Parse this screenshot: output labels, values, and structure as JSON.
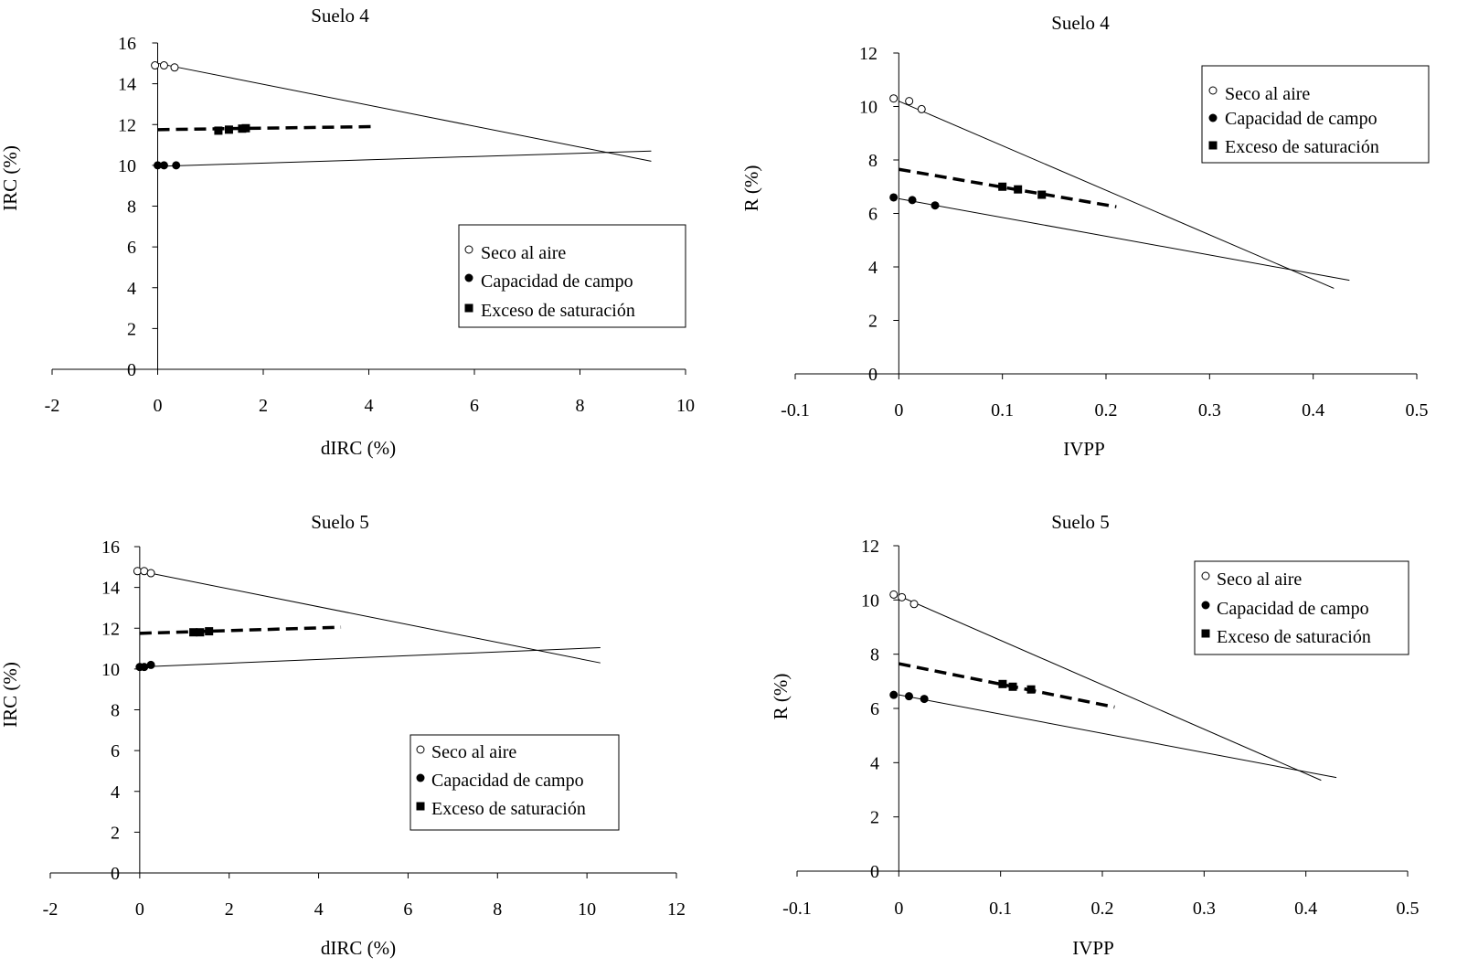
{
  "legend": [
    {
      "label": "Seco al aire",
      "marker": "open-circle"
    },
    {
      "label": "Capacidad de campo",
      "marker": "filled-circle"
    },
    {
      "label": "Exceso de saturación",
      "marker": "filled-square"
    }
  ],
  "colors": {
    "ink": "#000000",
    "background": "#ffffff",
    "marker_fill_open": "#ffffff"
  },
  "chart_data": [
    {
      "type": "scatter",
      "title": "Suelo 4",
      "xlabel": "dIRC (%)",
      "ylabel": "IRC (%)",
      "xlim": [
        -2,
        10
      ],
      "ylim": [
        0,
        16
      ],
      "xticks": [
        "-2",
        "0",
        "2",
        "4",
        "6",
        "8",
        "10"
      ],
      "yticks": [
        "0",
        "2",
        "4",
        "6",
        "8",
        "10",
        "12",
        "14",
        "16"
      ],
      "legend_position": "right-middle",
      "series": [
        {
          "name": "Seco al aire",
          "marker": "open-circle",
          "x": [
            -0.05,
            0.12,
            0.32
          ],
          "y": [
            14.9,
            14.9,
            14.8
          ],
          "fit": {
            "x": [
              0,
              9.35
            ],
            "y": [
              15.0,
              10.2
            ],
            "style": "thin"
          }
        },
        {
          "name": "Capacidad de campo",
          "marker": "filled-circle",
          "x": [
            0.0,
            0.12,
            0.35
          ],
          "y": [
            10.0,
            10.0,
            10.0
          ],
          "fit": {
            "x": [
              0,
              9.35
            ],
            "y": [
              9.95,
              10.7
            ],
            "style": "thin"
          }
        },
        {
          "name": "Exceso de saturación",
          "marker": "filled-square",
          "x": [
            1.15,
            1.35,
            1.6,
            1.67
          ],
          "y": [
            11.7,
            11.75,
            11.8,
            11.82
          ],
          "fit": {
            "x": [
              0,
              4.1
            ],
            "y": [
              11.75,
              11.9
            ],
            "style": "dashed"
          }
        }
      ]
    },
    {
      "type": "scatter",
      "title": "Suelo 4",
      "xlabel": "IVPP",
      "ylabel": "R (%)",
      "xlim": [
        -0.1,
        0.5
      ],
      "ylim": [
        0,
        12
      ],
      "xticks": [
        "-0.1",
        "0",
        "0.1",
        "0.2",
        "0.3",
        "0.4",
        "0.5"
      ],
      "yticks": [
        "0",
        "2",
        "4",
        "6",
        "8",
        "10",
        "12"
      ],
      "legend_position": "top-right",
      "series": [
        {
          "name": "Seco al aire",
          "marker": "open-circle",
          "x": [
            -0.005,
            0.01,
            0.022
          ],
          "y": [
            10.3,
            10.2,
            9.9
          ],
          "fit": {
            "x": [
              0,
              0.42
            ],
            "y": [
              10.2,
              3.2
            ],
            "style": "thin"
          }
        },
        {
          "name": "Capacidad de campo",
          "marker": "filled-circle",
          "x": [
            -0.005,
            0.013,
            0.035
          ],
          "y": [
            6.6,
            6.5,
            6.3
          ],
          "fit": {
            "x": [
              0,
              0.435
            ],
            "y": [
              6.55,
              3.5
            ],
            "style": "thin"
          }
        },
        {
          "name": "Exceso de saturación",
          "marker": "filled-square",
          "x": [
            0.1,
            0.115,
            0.138
          ],
          "y": [
            7.0,
            6.9,
            6.7
          ],
          "fit": {
            "x": [
              0,
              0.21
            ],
            "y": [
              7.65,
              6.25
            ],
            "style": "dashed"
          }
        }
      ]
    },
    {
      "type": "scatter",
      "title": "Suelo 5",
      "xlabel": "dIRC (%)",
      "ylabel": "IRC (%)",
      "xlim": [
        -2,
        12
      ],
      "ylim": [
        0,
        16
      ],
      "xticks": [
        "-2",
        "0",
        "2",
        "4",
        "6",
        "8",
        "10",
        "12"
      ],
      "yticks": [
        "0",
        "2",
        "4",
        "6",
        "8",
        "10",
        "12",
        "14",
        "16"
      ],
      "legend_position": "bottom-middle",
      "series": [
        {
          "name": "Seco al aire",
          "marker": "open-circle",
          "x": [
            -0.05,
            0.1,
            0.25
          ],
          "y": [
            14.8,
            14.8,
            14.7
          ],
          "fit": {
            "x": [
              0,
              10.3
            ],
            "y": [
              14.8,
              10.3
            ],
            "style": "thin"
          }
        },
        {
          "name": "Capacidad de campo",
          "marker": "filled-circle",
          "x": [
            0.0,
            0.1,
            0.25
          ],
          "y": [
            10.1,
            10.1,
            10.2
          ],
          "fit": {
            "x": [
              0,
              10.3
            ],
            "y": [
              10.1,
              11.05
            ],
            "style": "thin"
          }
        },
        {
          "name": "Exceso de saturación",
          "marker": "filled-square",
          "x": [
            1.2,
            1.35,
            1.55
          ],
          "y": [
            11.8,
            11.8,
            11.85
          ],
          "fit": {
            "x": [
              0,
              4.5
            ],
            "y": [
              11.75,
              12.05
            ],
            "style": "dashed"
          }
        }
      ]
    },
    {
      "type": "scatter",
      "title": "Suelo 5",
      "xlabel": "IVPP",
      "ylabel": "R (%)",
      "xlim": [
        -0.1,
        0.5
      ],
      "ylim": [
        0,
        12
      ],
      "xticks": [
        "-0.1",
        "0",
        "0.1",
        "0.2",
        "0.3",
        "0.4",
        "0.5"
      ],
      "yticks": [
        "0",
        "2",
        "4",
        "6",
        "8",
        "10",
        "12"
      ],
      "legend_position": "top-right",
      "series": [
        {
          "name": "Seco al aire",
          "marker": "open-circle",
          "x": [
            -0.005,
            0.003,
            0.015
          ],
          "y": [
            10.2,
            10.1,
            9.85
          ],
          "fit": {
            "x": [
              0,
              0.415
            ],
            "y": [
              10.15,
              3.35
            ],
            "style": "thin"
          }
        },
        {
          "name": "Capacidad de campo",
          "marker": "filled-circle",
          "x": [
            -0.005,
            0.01,
            0.025
          ],
          "y": [
            6.5,
            6.45,
            6.35
          ],
          "fit": {
            "x": [
              0,
              0.43
            ],
            "y": [
              6.5,
              3.45
            ],
            "style": "thin"
          }
        },
        {
          "name": "Exceso de saturación",
          "marker": "filled-square",
          "x": [
            0.102,
            0.112,
            0.13
          ],
          "y": [
            6.9,
            6.8,
            6.7
          ],
          "fit": {
            "x": [
              0,
              0.212
            ],
            "y": [
              7.65,
              6.05
            ],
            "style": "dashed"
          }
        }
      ]
    }
  ]
}
